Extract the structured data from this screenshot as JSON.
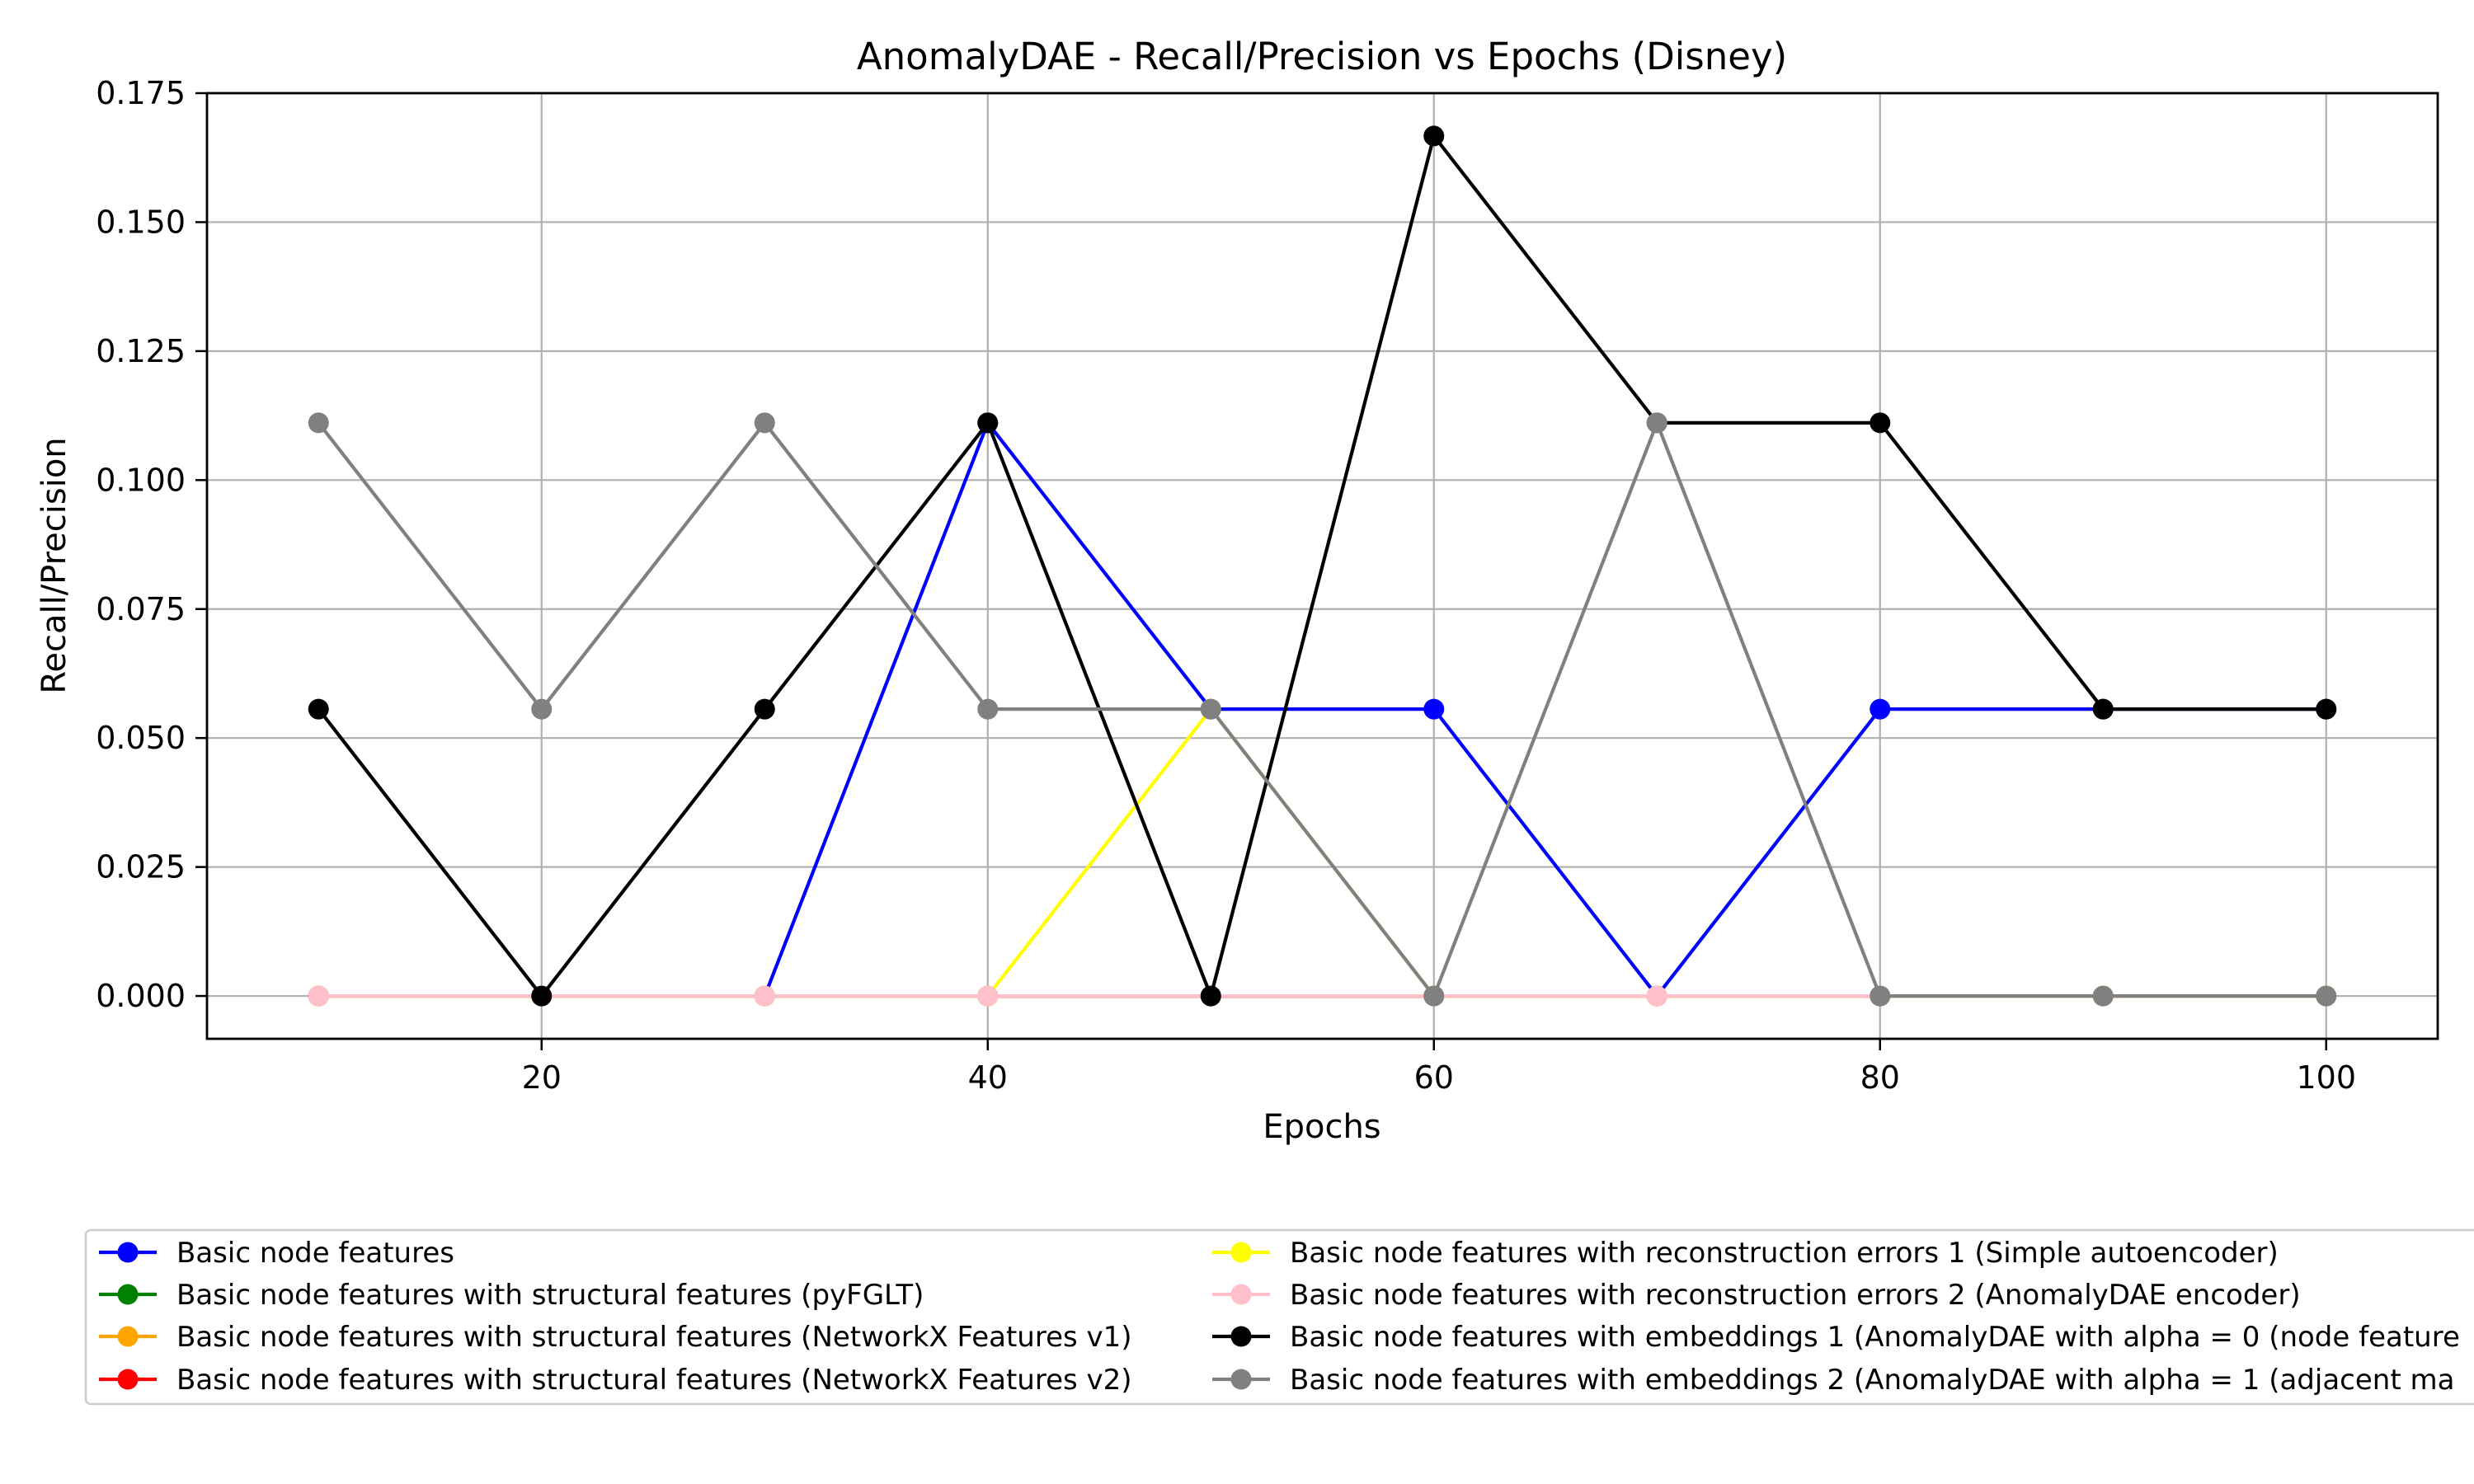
{
  "chart_data": {
    "type": "line",
    "title": "AnomalyDAE - Recall/Precision vs Epochs (Disney)",
    "xlabel": "Epochs",
    "ylabel": "Recall/Precision",
    "x": [
      10,
      20,
      30,
      40,
      50,
      60,
      70,
      80,
      90,
      100
    ],
    "xlim": [
      5,
      105
    ],
    "ylim": [
      -0.0083,
      0.175
    ],
    "xticks": [
      20,
      40,
      60,
      80,
      100
    ],
    "yticks": [
      0.0,
      0.025,
      0.05,
      0.075,
      0.1,
      0.125,
      0.15,
      0.175
    ],
    "grid": true,
    "legend_position": "bottom",
    "series": [
      {
        "name": "Basic node features",
        "color": "#0000ff",
        "values": [
          0,
          0,
          0,
          0.1111,
          0.0556,
          0.0556,
          0,
          0.0556,
          0.0556,
          0.0556
        ]
      },
      {
        "name": "Basic node features with structural features (pyFGLT)",
        "color": "#008000",
        "values": [
          0,
          0,
          0,
          0,
          0,
          0,
          0,
          0,
          0,
          0
        ]
      },
      {
        "name": "Basic node features with structural features (NetworkX Features v1)",
        "color": "#ffa500",
        "values": [
          0,
          0,
          0,
          0,
          0,
          0,
          0,
          0,
          0,
          0
        ]
      },
      {
        "name": "Basic node features with structural features (NetworkX Features v2)",
        "color": "#ff0000",
        "values": [
          0,
          0,
          0,
          0,
          0,
          0,
          0,
          0,
          0,
          0
        ]
      },
      {
        "name": "Basic node features with reconstruction errors 1 (Simple autoencoder)",
        "color": "#ffff00",
        "values": [
          0,
          0,
          0,
          0,
          0.0556,
          0,
          0,
          0,
          0,
          0
        ]
      },
      {
        "name": "Basic node features with reconstruction errors 2 (AnomalyDAE encoder)",
        "color": "#ffc0cb",
        "values": [
          0,
          0,
          0,
          0,
          0,
          0,
          0,
          0,
          0,
          0
        ]
      },
      {
        "name": "Basic node features with embeddings 1 (AnomalyDAE with alpha = 0 (node feature",
        "color": "#000000",
        "values": [
          0.0556,
          0,
          0.0556,
          0.1111,
          0,
          0.1667,
          0.1111,
          0.1111,
          0.0556,
          0.0556
        ]
      },
      {
        "name": "Basic node features with embeddings 2 (AnomalyDAE with alpha = 1 (adjacent ma",
        "color": "#808080",
        "values": [
          0.1111,
          0.0556,
          0.1111,
          0.0556,
          0.0556,
          0,
          0.1111,
          0,
          0,
          0
        ]
      }
    ]
  }
}
